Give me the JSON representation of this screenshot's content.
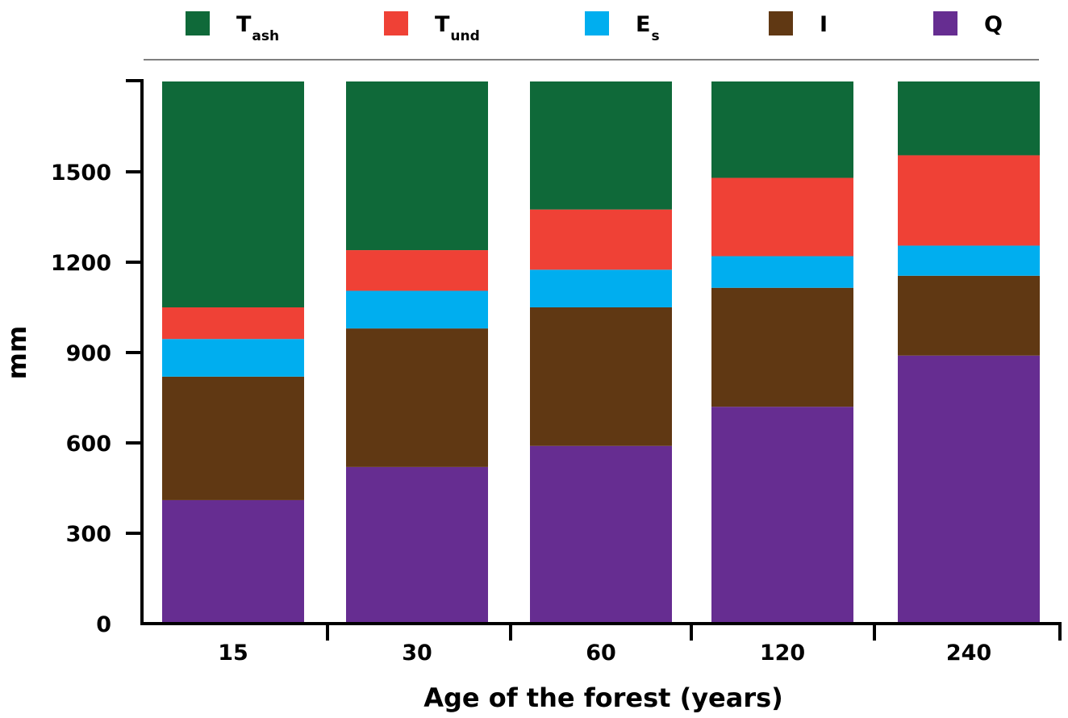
{
  "chart_data": {
    "type": "bar",
    "stacked": true,
    "xlabel": "Age of the forest (years)",
    "ylabel": "mm",
    "categories": [
      "15",
      "30",
      "60",
      "120",
      "240"
    ],
    "ylim": [
      0,
      1800
    ],
    "yticks": [
      "0",
      "300",
      "600",
      "900",
      "1200",
      "1500"
    ],
    "legend_position": "top",
    "grid": false,
    "series": [
      {
        "name": "Q",
        "color": "#662d91",
        "values": [
          410,
          520,
          590,
          720,
          890
        ]
      },
      {
        "name": "I",
        "color": "#603813",
        "values": [
          410,
          460,
          460,
          395,
          265
        ]
      },
      {
        "name": "Es",
        "color": "#00aeef",
        "values": [
          125,
          125,
          125,
          105,
          100
        ]
      },
      {
        "name": "Tund",
        "color": "#ef4136",
        "values": [
          105,
          135,
          200,
          260,
          300
        ]
      },
      {
        "name": "Tash",
        "color": "#0f6939",
        "values": [
          750,
          560,
          425,
          320,
          245
        ]
      }
    ],
    "legend": [
      {
        "main": "T",
        "sub": "ash",
        "color": "#0f6939"
      },
      {
        "main": "T",
        "sub": "und",
        "color": "#ef4136"
      },
      {
        "main": "E",
        "sub": "s",
        "color": "#00aeef"
      },
      {
        "main": "I",
        "sub": "",
        "color": "#603813"
      },
      {
        "main": "Q",
        "sub": "",
        "color": "#662d91"
      }
    ]
  }
}
